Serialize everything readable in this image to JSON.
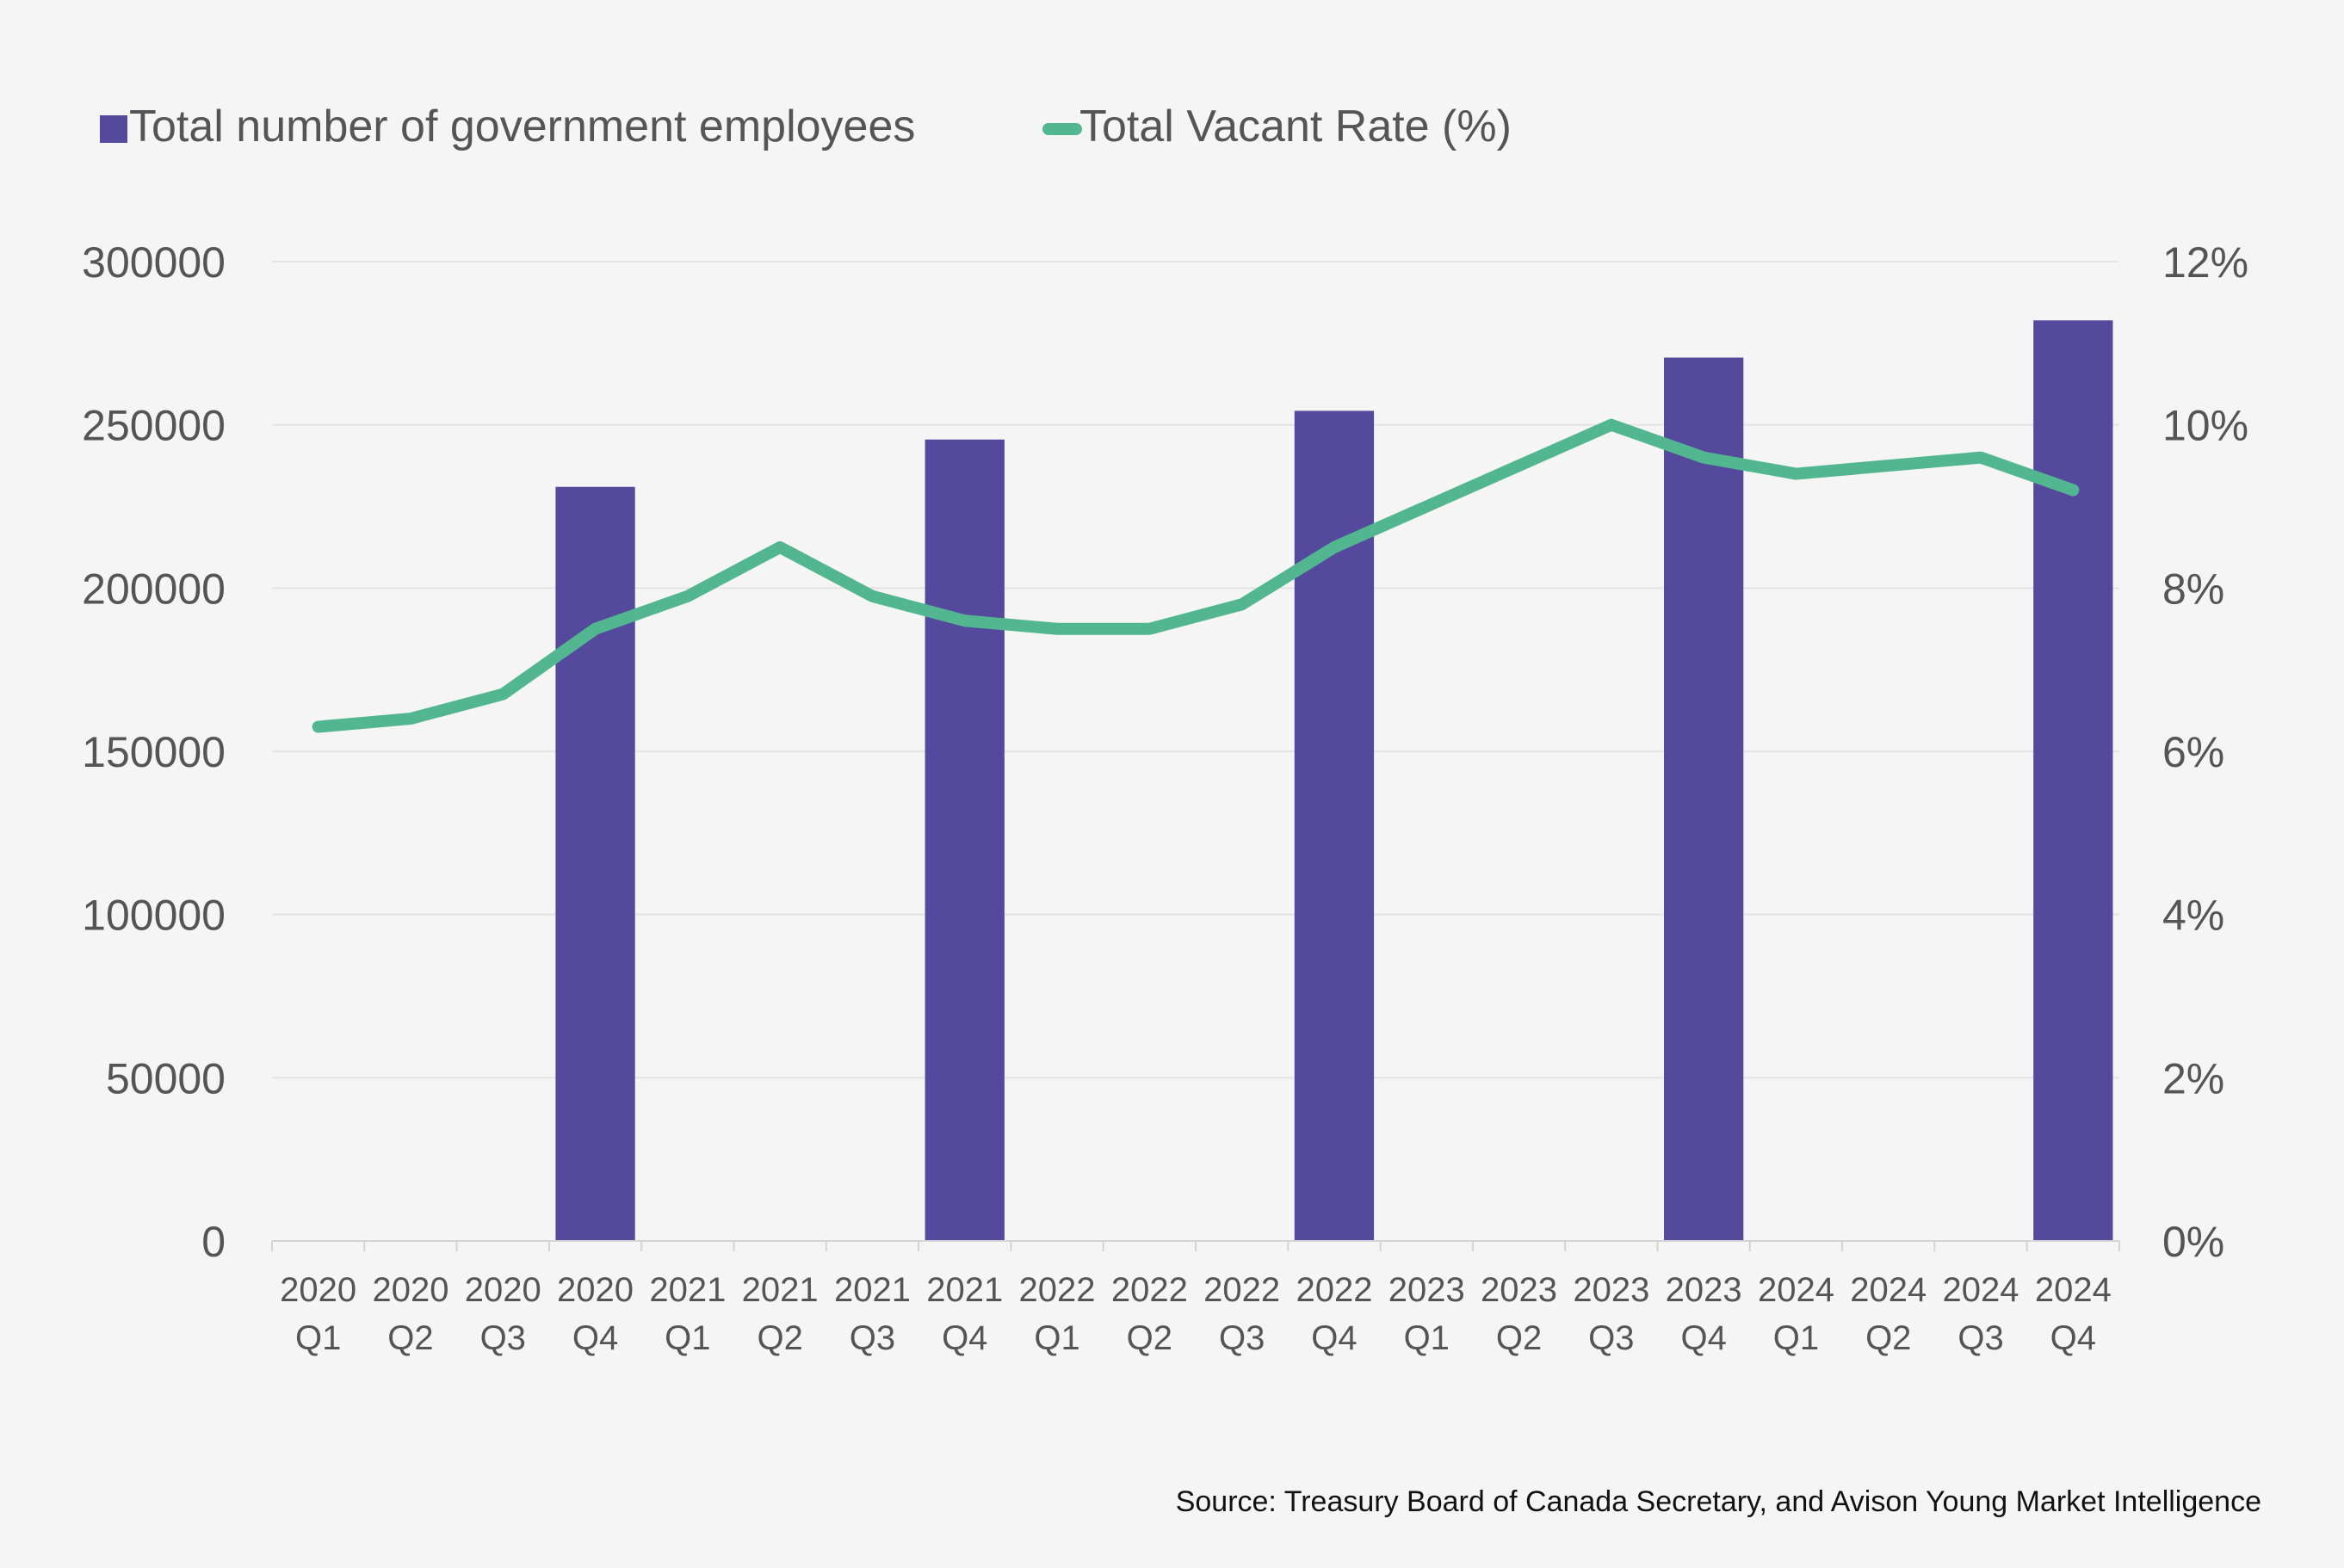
{
  "colors": {
    "bar": "#54499c",
    "line": "#52b791",
    "grid": "#e4e4e4",
    "axis": "#d4d4d4",
    "text": "#555555",
    "background": "#f5f5f5"
  },
  "legend": {
    "bars_label": "Total number of government employees",
    "line_label": "Total Vacant Rate (%)"
  },
  "source": "Source: Treasury Board of Canada Secretary, and Avison Young Market Intelligence",
  "chart_data": {
    "type": "bar+line",
    "title": "",
    "categories": [
      [
        "2020",
        "Q1"
      ],
      [
        "2020",
        "Q2"
      ],
      [
        "2020",
        "Q3"
      ],
      [
        "2020",
        "Q4"
      ],
      [
        "2021",
        "Q1"
      ],
      [
        "2021",
        "Q2"
      ],
      [
        "2021",
        "Q3"
      ],
      [
        "2021",
        "Q4"
      ],
      [
        "2022",
        "Q1"
      ],
      [
        "2022",
        "Q2"
      ],
      [
        "2022",
        "Q3"
      ],
      [
        "2022",
        "Q4"
      ],
      [
        "2023",
        "Q1"
      ],
      [
        "2023",
        "Q2"
      ],
      [
        "2023",
        "Q3"
      ],
      [
        "2023",
        "Q4"
      ],
      [
        "2024",
        "Q1"
      ],
      [
        "2024",
        "Q2"
      ],
      [
        "2024",
        "Q3"
      ],
      [
        "2024",
        "Q4"
      ]
    ],
    "series": [
      {
        "name": "Total number of government employees",
        "type": "bar",
        "axis": "left",
        "values": [
          null,
          null,
          null,
          231000,
          null,
          null,
          null,
          245500,
          null,
          null,
          null,
          254300,
          null,
          null,
          null,
          270600,
          null,
          null,
          null,
          282000
        ]
      },
      {
        "name": "Total Vacant Rate (%)",
        "type": "line",
        "axis": "right",
        "values": [
          6.3,
          6.4,
          6.7,
          7.5,
          7.9,
          8.5,
          7.9,
          7.6,
          7.5,
          7.5,
          7.8,
          8.5,
          9.0,
          9.5,
          10.0,
          9.6,
          9.4,
          9.5,
          9.6,
          9.2
        ]
      }
    ],
    "left_axis": {
      "min": 0,
      "max": 300000,
      "ticks": [
        "0",
        "50000",
        "100000",
        "150000",
        "200000",
        "250000",
        "300000"
      ]
    },
    "right_axis": {
      "min": 0,
      "max": 12,
      "ticks": [
        "0%",
        "2%",
        "4%",
        "6%",
        "8%",
        "10%",
        "12%"
      ]
    },
    "grid": true,
    "legend_position": "top-left"
  }
}
